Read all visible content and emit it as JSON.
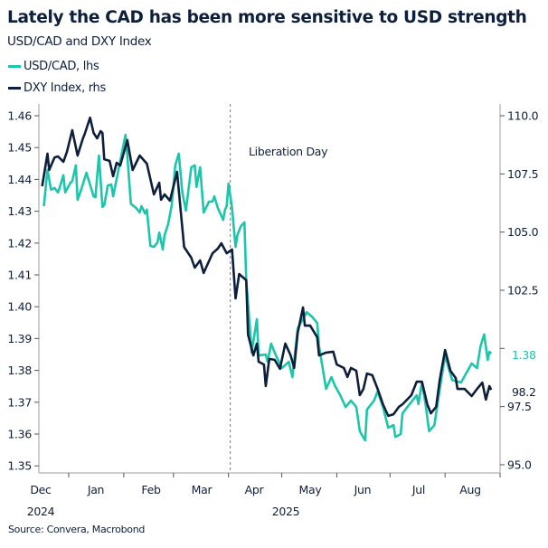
{
  "title": "Lately the CAD has been more sensitive to USD strength",
  "subtitle": "USD/CAD and DXY Index",
  "source": "Source: Convera, Macrobond",
  "colors": {
    "usdcad": "#1cc6ab",
    "dxy": "#0d1f3c",
    "axis": "#bdbdbd"
  },
  "chart_data": {
    "type": "line",
    "legend_position": "top-left",
    "grid": false,
    "x_range": [
      "2024-12-16",
      "2025-09-01"
    ],
    "x_month_labels": [
      "Dec",
      "Jan",
      "Feb",
      "Mar",
      "Apr",
      "May",
      "Jun",
      "Jul",
      "Aug"
    ],
    "x_year_labels": [
      "2024",
      "2025"
    ],
    "left_axis": {
      "ylim": [
        1.35,
        1.46
      ],
      "ticks": [
        "1.35",
        "1.36",
        "1.37",
        "1.38",
        "1.39",
        "1.40",
        "1.41",
        "1.42",
        "1.43",
        "1.44",
        "1.45",
        "1.46"
      ]
    },
    "right_axis": {
      "ylim": [
        95.0,
        110.0
      ],
      "ticks": [
        "95.0",
        "97.5",
        "100.0",
        "102.5",
        "105.0",
        "107.5",
        "110.0"
      ],
      "hidden_tick_labels": [
        "100.0"
      ]
    },
    "annotation": {
      "date": "2025-04-02",
      "label": "Liberation Day"
    },
    "last_value_labels": {
      "usdcad": "1.38",
      "dxy": "98.2"
    },
    "series": [
      {
        "name": "USD/CAD, lhs",
        "axis": "left",
        "points": [
          [
            "2024-12-18",
            1.4316
          ],
          [
            "2024-12-20",
            1.443
          ],
          [
            "2024-12-22",
            1.4368
          ],
          [
            "2024-12-24",
            1.4373
          ],
          [
            "2024-12-26",
            1.4359
          ],
          [
            "2024-12-28",
            1.4395
          ],
          [
            "2024-12-29",
            1.4413
          ],
          [
            "2024-12-30",
            1.4359
          ],
          [
            "2025-01-02",
            1.439
          ],
          [
            "2025-01-03",
            1.4395
          ],
          [
            "2025-01-05",
            1.4444
          ],
          [
            "2025-01-06",
            1.4336
          ],
          [
            "2025-01-08",
            1.4367
          ],
          [
            "2025-01-11",
            1.4421
          ],
          [
            "2025-01-15",
            1.4347
          ],
          [
            "2025-01-16",
            1.4344
          ],
          [
            "2025-01-18",
            1.4475
          ],
          [
            "2025-01-20",
            1.4313
          ],
          [
            "2025-01-21",
            1.4319
          ],
          [
            "2025-01-23",
            1.4381
          ],
          [
            "2025-01-25",
            1.4384
          ],
          [
            "2025-01-26",
            1.4347
          ],
          [
            "2025-02-02",
            1.454
          ],
          [
            "2025-02-03",
            1.4475
          ],
          [
            "2025-02-05",
            1.4324
          ],
          [
            "2025-02-08",
            1.431
          ],
          [
            "2025-02-10",
            1.4296
          ],
          [
            "2025-02-11",
            1.4316
          ],
          [
            "2025-02-13",
            1.4293
          ],
          [
            "2025-02-14",
            1.4305
          ],
          [
            "2025-02-16",
            1.4191
          ],
          [
            "2025-02-18",
            1.4188
          ],
          [
            "2025-02-20",
            1.4202
          ],
          [
            "2025-02-21",
            1.4233
          ],
          [
            "2025-02-23",
            1.418
          ],
          [
            "2025-02-24",
            1.4225
          ],
          [
            "2025-02-26",
            1.4259
          ],
          [
            "2025-02-28",
            1.4319
          ],
          [
            "2025-03-02",
            1.4444
          ],
          [
            "2025-03-04",
            1.4481
          ],
          [
            "2025-03-06",
            1.4359
          ],
          [
            "2025-03-08",
            1.4302
          ],
          [
            "2025-03-11",
            1.4438
          ],
          [
            "2025-03-13",
            1.4444
          ],
          [
            "2025-03-14",
            1.4376
          ],
          [
            "2025-03-16",
            1.4438
          ],
          [
            "2025-03-18",
            1.4296
          ],
          [
            "2025-03-21",
            1.433
          ],
          [
            "2025-03-23",
            1.433
          ],
          [
            "2025-03-24",
            1.4347
          ],
          [
            "2025-03-26",
            1.431
          ],
          [
            "2025-03-29",
            1.4273
          ],
          [
            "2025-03-30",
            1.4305
          ],
          [
            "2025-03-31",
            1.4316
          ],
          [
            "2025-04-01",
            1.4387
          ],
          [
            "2025-04-03",
            1.431
          ],
          [
            "2025-04-05",
            1.4188
          ],
          [
            "2025-04-06",
            1.4225
          ],
          [
            "2025-04-08",
            1.4253
          ],
          [
            "2025-04-10",
            1.4265
          ],
          [
            "2025-04-11",
            1.4083
          ],
          [
            "2025-04-13",
            1.3941
          ],
          [
            "2025-04-14",
            1.3856
          ],
          [
            "2025-04-17",
            1.3961
          ],
          [
            "2025-04-18",
            1.3847
          ],
          [
            "2025-04-22",
            1.385
          ],
          [
            "2025-04-23",
            1.3827
          ],
          [
            "2025-04-25",
            1.3884
          ],
          [
            "2025-04-27",
            1.3856
          ],
          [
            "2025-05-01",
            1.3807
          ],
          [
            "2025-05-05",
            1.3827
          ],
          [
            "2025-05-07",
            1.3779
          ],
          [
            "2025-05-10",
            1.3932
          ],
          [
            "2025-05-15",
            1.3983
          ],
          [
            "2025-05-18",
            1.3969
          ],
          [
            "2025-05-21",
            1.3949
          ],
          [
            "2025-05-22",
            1.3876
          ],
          [
            "2025-05-26",
            1.3742
          ],
          [
            "2025-05-29",
            1.3779
          ],
          [
            "2025-05-31",
            1.3751
          ],
          [
            "2025-06-03",
            1.3722
          ],
          [
            "2025-06-06",
            1.3685
          ],
          [
            "2025-06-09",
            1.3705
          ],
          [
            "2025-06-12",
            1.3685
          ],
          [
            "2025-06-14",
            1.3609
          ],
          [
            "2025-06-17",
            1.358
          ],
          [
            "2025-06-18",
            1.3677
          ],
          [
            "2025-06-22",
            1.3705
          ],
          [
            "2025-06-24",
            1.3734
          ],
          [
            "2025-06-27",
            1.3685
          ],
          [
            "2025-06-30",
            1.362
          ],
          [
            "2025-07-03",
            1.3628
          ],
          [
            "2025-07-04",
            1.3591
          ],
          [
            "2025-07-07",
            1.36
          ],
          [
            "2025-07-08",
            1.3665
          ],
          [
            "2025-07-12",
            1.3694
          ],
          [
            "2025-07-16",
            1.3722
          ],
          [
            "2025-07-17",
            1.3694
          ],
          [
            "2025-07-19",
            1.3762
          ],
          [
            "2025-07-21",
            1.3694
          ],
          [
            "2025-07-23",
            1.3609
          ],
          [
            "2025-07-26",
            1.3628
          ],
          [
            "2025-07-29",
            1.3742
          ],
          [
            "2025-08-01",
            1.3847
          ],
          [
            "2025-08-05",
            1.377
          ],
          [
            "2025-08-10",
            1.3762
          ],
          [
            "2025-08-16",
            1.3822
          ],
          [
            "2025-08-19",
            1.3807
          ],
          [
            "2025-08-21",
            1.3876
          ],
          [
            "2025-08-23",
            1.3913
          ],
          [
            "2025-08-25",
            1.3833
          ],
          [
            "2025-08-26",
            1.3858
          ],
          [
            "2025-08-27",
            1.3853
          ]
        ]
      },
      {
        "name": "DXY Index, rhs",
        "axis": "right",
        "points": [
          [
            "2024-12-17",
            106.97
          ],
          [
            "2024-12-20",
            108.37
          ],
          [
            "2024-12-21",
            107.67
          ],
          [
            "2024-12-24",
            108.21
          ],
          [
            "2024-12-26",
            108.25
          ],
          [
            "2024-12-29",
            108.02
          ],
          [
            "2024-12-31",
            108.45
          ],
          [
            "2025-01-03",
            109.38
          ],
          [
            "2025-01-06",
            108.29
          ],
          [
            "2025-01-09",
            109.03
          ],
          [
            "2025-01-10",
            109.22
          ],
          [
            "2025-01-13",
            109.92
          ],
          [
            "2025-01-15",
            109.26
          ],
          [
            "2025-01-17",
            109.03
          ],
          [
            "2025-01-19",
            109.34
          ],
          [
            "2025-01-20",
            109.26
          ],
          [
            "2025-01-21",
            108.13
          ],
          [
            "2025-01-24",
            108.06
          ],
          [
            "2025-01-26",
            107.4
          ],
          [
            "2025-01-28",
            107.98
          ],
          [
            "2025-01-30",
            107.86
          ],
          [
            "2025-02-03",
            108.95
          ],
          [
            "2025-02-06",
            107.67
          ],
          [
            "2025-02-10",
            108.29
          ],
          [
            "2025-02-14",
            107.94
          ],
          [
            "2025-02-18",
            106.62
          ],
          [
            "2025-02-21",
            107.12
          ],
          [
            "2025-02-22",
            106.39
          ],
          [
            "2025-02-24",
            106.62
          ],
          [
            "2025-02-27",
            106.35
          ],
          [
            "2025-03-03",
            107.59
          ],
          [
            "2025-03-07",
            104.36
          ],
          [
            "2025-03-11",
            103.9
          ],
          [
            "2025-03-13",
            103.47
          ],
          [
            "2025-03-16",
            103.78
          ],
          [
            "2025-03-18",
            103.24
          ],
          [
            "2025-03-23",
            104.09
          ],
          [
            "2025-03-26",
            104.29
          ],
          [
            "2025-03-28",
            104.52
          ],
          [
            "2025-03-31",
            104.09
          ],
          [
            "2025-04-03",
            104.25
          ],
          [
            "2025-04-05",
            102.15
          ],
          [
            "2025-04-07",
            103.2
          ],
          [
            "2025-04-11",
            102.93
          ],
          [
            "2025-04-12",
            100.59
          ],
          [
            "2025-04-15",
            99.7
          ],
          [
            "2025-04-17",
            100.21
          ],
          [
            "2025-04-18",
            99.43
          ],
          [
            "2025-04-21",
            99.31
          ],
          [
            "2025-04-22",
            98.38
          ],
          [
            "2025-04-24",
            99.55
          ],
          [
            "2025-04-27",
            99.51
          ],
          [
            "2025-04-30",
            99.12
          ],
          [
            "2025-05-03",
            100.21
          ],
          [
            "2025-05-06",
            99.7
          ],
          [
            "2025-05-08",
            99.16
          ],
          [
            "2025-05-10",
            100.67
          ],
          [
            "2025-05-13",
            101.76
          ],
          [
            "2025-05-14",
            100.98
          ],
          [
            "2025-05-17",
            100.98
          ],
          [
            "2025-05-21",
            100.48
          ],
          [
            "2025-05-22",
            99.7
          ],
          [
            "2025-05-26",
            99.82
          ],
          [
            "2025-05-30",
            99.86
          ],
          [
            "2025-06-01",
            99.31
          ],
          [
            "2025-06-05",
            99.16
          ],
          [
            "2025-06-07",
            98.77
          ],
          [
            "2025-06-09",
            99.16
          ],
          [
            "2025-06-12",
            99.04
          ],
          [
            "2025-06-14",
            97.99
          ],
          [
            "2025-06-16",
            98.26
          ],
          [
            "2025-06-18",
            98.92
          ],
          [
            "2025-06-21",
            98.85
          ],
          [
            "2025-06-24",
            98.26
          ],
          [
            "2025-06-27",
            97.6
          ],
          [
            "2025-06-30",
            97.1
          ],
          [
            "2025-07-03",
            97.17
          ],
          [
            "2025-07-06",
            97.49
          ],
          [
            "2025-07-08",
            97.6
          ],
          [
            "2025-07-13",
            97.99
          ],
          [
            "2025-07-16",
            98.57
          ],
          [
            "2025-07-19",
            98.57
          ],
          [
            "2025-07-22",
            97.6
          ],
          [
            "2025-07-24",
            97.21
          ],
          [
            "2025-07-27",
            97.49
          ],
          [
            "2025-07-29",
            98.65
          ],
          [
            "2025-08-01",
            99.93
          ],
          [
            "2025-08-04",
            99.04
          ],
          [
            "2025-08-07",
            98.73
          ],
          [
            "2025-08-08",
            98.26
          ],
          [
            "2025-08-12",
            98.26
          ],
          [
            "2025-08-16",
            97.95
          ],
          [
            "2025-08-19",
            98.26
          ],
          [
            "2025-08-22",
            98.53
          ],
          [
            "2025-08-24",
            97.8
          ],
          [
            "2025-08-26",
            98.38
          ],
          [
            "2025-08-27",
            98.22
          ]
        ]
      }
    ]
  }
}
